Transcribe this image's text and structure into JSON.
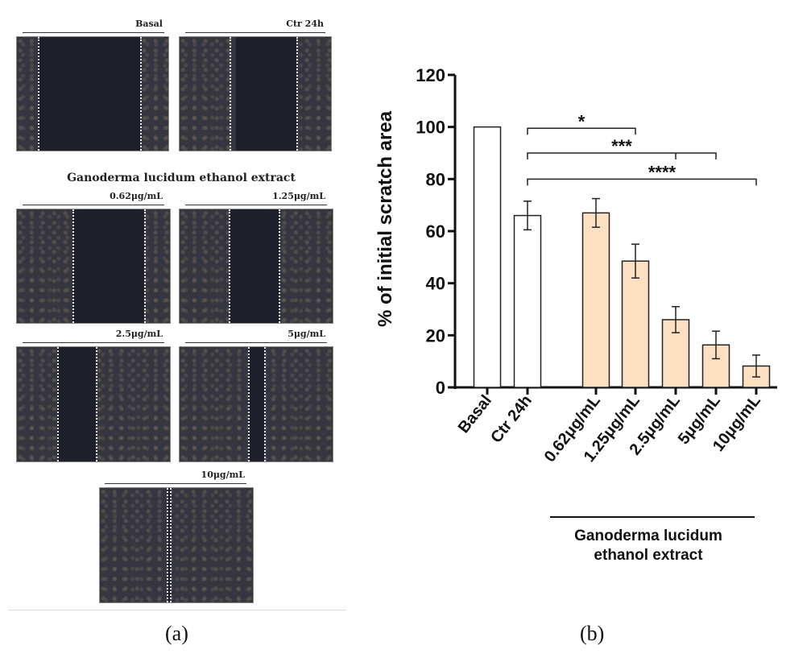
{
  "panel_a": {
    "label": "(a)",
    "group_title": "Ganoderma  lucidum ethanol extract",
    "images": [
      {
        "label": "Basal"
      },
      {
        "label": "Ctr 24h"
      },
      {
        "label": "0.62μg/mL"
      },
      {
        "label": "1.25μg/mL"
      },
      {
        "label": "2.5μg/mL"
      },
      {
        "label": "5μg/mL"
      },
      {
        "label": "10μg/mL"
      }
    ]
  },
  "panel_b": {
    "label": "(b)"
  },
  "chart_data": {
    "type": "bar",
    "ylabel": "% of initial scratch area",
    "ylim": [
      0,
      120
    ],
    "yticks": [
      0,
      20,
      40,
      60,
      80,
      100,
      120
    ],
    "categories": [
      "Basal",
      "Ctr 24h",
      "0.62μg/mL",
      "1.25μg/mL",
      "2.5μg/mL",
      "5μg/mL",
      "10μg/mL"
    ],
    "values": [
      100,
      66,
      67,
      48.5,
      26,
      16.3,
      8.2
    ],
    "errors": [
      0,
      5.5,
      5.5,
      6.5,
      5,
      5.3,
      4.2
    ],
    "colors": [
      "#ffffff",
      "#ffffff",
      "#fde0c2",
      "#fde0c2",
      "#fde0c2",
      "#fde0c2",
      "#fde0c2"
    ],
    "group_label_line1": "Ganoderma  lucidum",
    "group_label_line2": "ethanol extract",
    "significance": [
      {
        "label": "*",
        "from": "Ctr 24h",
        "to": [
          "1.25μg/mL"
        ],
        "y": 99.5
      },
      {
        "label": "***",
        "from": "Ctr 24h",
        "to": [
          "2.5μg/mL",
          "5μg/mL"
        ],
        "y": 90
      },
      {
        "label": "****",
        "from": "Ctr 24h",
        "to": [
          "10μg/mL"
        ],
        "y": 80
      }
    ]
  }
}
